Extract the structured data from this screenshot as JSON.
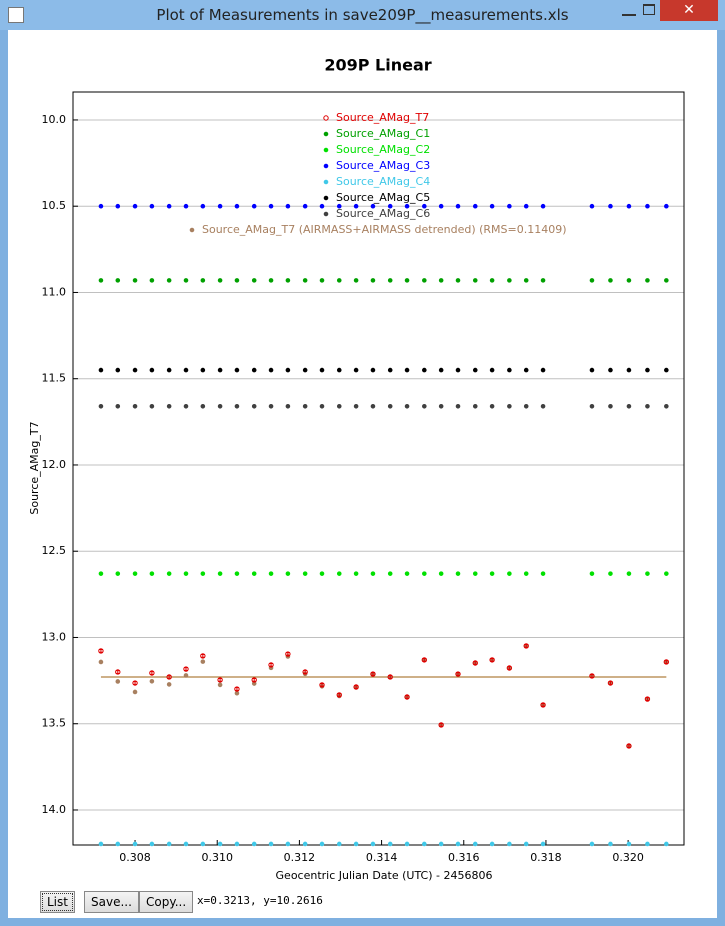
{
  "window": {
    "title": "Plot of Measurements in save209P__measurements.xls",
    "buttons": [
      "List",
      "Save...",
      "Copy..."
    ],
    "status": "x=0.3213, y=10.2616"
  },
  "chart_data": {
    "type": "scatter",
    "title": "209P Linear",
    "x_label": "Geocentric Julian Date (UTC) - 2456806",
    "y_label": "Source_AMag_T7",
    "xlim": [
      0.30649,
      0.32136
    ],
    "ylim": [
      9.838,
      14.203
    ],
    "y_inverted": true,
    "xticks": [
      0.308,
      {
        "value": 0.31,
        "label": "0.310"
      },
      0.312,
      0.314,
      0.316,
      0.318,
      {
        "value": 0.32,
        "label": "0.320"
      }
    ],
    "yticks": [
      {
        "value": 10,
        "label": "10.0"
      },
      10.5,
      {
        "value": 11,
        "label": "11.0"
      },
      11.5,
      {
        "value": 12,
        "label": "12.0"
      },
      12.5,
      {
        "value": 13,
        "label": "13.0"
      },
      13.5,
      {
        "value": 14,
        "label": "14.0"
      }
    ],
    "grid": true,
    "x": [
      0.30717,
      0.30758,
      0.308,
      0.30841,
      0.30883,
      0.30924,
      0.30965,
      0.31007,
      0.31048,
      0.3109,
      0.31131,
      0.31172,
      0.31214,
      0.31255,
      0.31297,
      0.31338,
      0.31379,
      0.31421,
      0.31462,
      0.31504,
      0.31545,
      0.31586,
      0.31628,
      0.31669,
      0.31711,
      0.31752,
      0.31793,
      0.31912,
      0.31957,
      0.32002,
      0.32047,
      0.32093
    ],
    "series": [
      {
        "name": "Source_AMag_T7",
        "color": "#e00000",
        "marker": "open",
        "values": [
          13.078,
          13.2,
          13.264,
          13.206,
          13.229,
          13.183,
          13.107,
          13.246,
          13.299,
          13.246,
          13.159,
          13.096,
          13.2,
          13.275,
          13.333,
          13.287,
          13.212,
          13.229,
          13.345,
          13.13,
          13.507,
          13.212,
          13.148,
          13.13,
          13.177,
          13.049,
          13.391,
          13.223,
          13.264,
          13.629,
          13.357,
          13.142
        ],
        "errors": [
          0.008,
          0.008,
          0.008,
          0.008,
          0.008,
          0.008,
          0.008,
          0.008,
          0.008,
          0.008,
          0.008,
          0.008,
          0.008,
          0.008,
          0.008,
          0.008,
          0.008,
          0.008,
          0.008,
          0.008,
          0.008,
          0.008,
          0.008,
          0.008,
          0.008,
          0.008,
          0.008,
          0.008,
          0.008,
          0.008,
          0.008,
          0.008
        ]
      },
      {
        "name": "Source_AMag_C1",
        "color": "#00a000",
        "marker": "filled",
        "values": [
          10.93,
          10.93,
          10.93,
          10.93,
          10.93,
          10.93,
          10.93,
          10.93,
          10.93,
          10.93,
          10.93,
          10.93,
          10.93,
          10.93,
          10.93,
          10.93,
          10.93,
          10.93,
          10.93,
          10.93,
          10.93,
          10.93,
          10.93,
          10.93,
          10.93,
          10.93,
          10.93,
          10.93,
          10.93,
          10.93,
          10.93,
          10.93
        ]
      },
      {
        "name": "Source_AMag_C2",
        "color": "#00e000",
        "marker": "filled",
        "values": [
          12.63,
          12.63,
          12.63,
          12.63,
          12.63,
          12.63,
          12.63,
          12.63,
          12.63,
          12.63,
          12.63,
          12.63,
          12.63,
          12.63,
          12.63,
          12.63,
          12.63,
          12.63,
          12.63,
          12.63,
          12.63,
          12.63,
          12.63,
          12.63,
          12.63,
          12.63,
          12.63,
          12.63,
          12.63,
          12.63,
          12.63,
          12.63
        ]
      },
      {
        "name": "Source_AMag_C3",
        "color": "#0000ff",
        "marker": "filled",
        "values": [
          10.5,
          10.5,
          10.5,
          10.5,
          10.5,
          10.5,
          10.5,
          10.5,
          10.5,
          10.5,
          10.5,
          10.5,
          10.5,
          10.5,
          10.5,
          10.5,
          10.5,
          10.5,
          10.5,
          10.5,
          10.5,
          10.5,
          10.5,
          10.5,
          10.5,
          10.5,
          10.5,
          10.5,
          10.5,
          10.5,
          10.5,
          10.5
        ]
      },
      {
        "name": "Source_AMag_C4",
        "color": "#40c8e8",
        "marker": "filled",
        "values": [
          14.197,
          14.197,
          14.197,
          14.197,
          14.197,
          14.197,
          14.197,
          14.197,
          14.197,
          14.197,
          14.197,
          14.197,
          14.197,
          14.197,
          14.197,
          14.197,
          14.197,
          14.197,
          14.197,
          14.197,
          14.197,
          14.197,
          14.197,
          14.197,
          14.197,
          14.197,
          14.197,
          14.197,
          14.197,
          14.197,
          14.197,
          14.197
        ]
      },
      {
        "name": "Source_AMag_C5",
        "color": "#000000",
        "marker": "filled",
        "values": [
          11.45,
          11.45,
          11.45,
          11.45,
          11.45,
          11.45,
          11.45,
          11.45,
          11.45,
          11.45,
          11.45,
          11.45,
          11.45,
          11.45,
          11.45,
          11.45,
          11.45,
          11.45,
          11.45,
          11.45,
          11.45,
          11.45,
          11.45,
          11.45,
          11.45,
          11.45,
          11.45,
          11.45,
          11.45,
          11.45,
          11.45,
          11.45
        ]
      },
      {
        "name": "Source_AMag_C6",
        "color": "#404040",
        "marker": "filled",
        "values": [
          11.66,
          11.66,
          11.66,
          11.66,
          11.66,
          11.66,
          11.66,
          11.66,
          11.66,
          11.66,
          11.66,
          11.66,
          11.66,
          11.66,
          11.66,
          11.66,
          11.66,
          11.66,
          11.66,
          11.66,
          11.66,
          11.66,
          11.66,
          11.66,
          11.66,
          11.66,
          11.66,
          11.66,
          11.66,
          11.66,
          11.66,
          11.66
        ]
      },
      {
        "name": "Source_AMag_T7 (AIRMASS+AIRMASS detrended) (RMS=0.11409)",
        "color": "#a88060",
        "marker": "filled",
        "values": [
          13.142,
          13.255,
          13.316,
          13.254,
          13.272,
          13.22,
          13.14,
          13.275,
          13.323,
          13.267,
          13.176,
          13.11,
          13.211,
          13.283,
          13.339,
          13.29,
          13.214,
          13.23,
          13.345,
          13.13,
          13.507,
          13.212,
          13.148,
          13.13,
          13.177,
          13.049,
          13.391,
          13.223,
          13.264,
          13.629,
          13.357,
          13.142
        ]
      }
    ],
    "fit": {
      "color": "#b08040",
      "x": [
        0.30717,
        0.32093
      ],
      "values": [
        13.229,
        13.229
      ]
    }
  }
}
